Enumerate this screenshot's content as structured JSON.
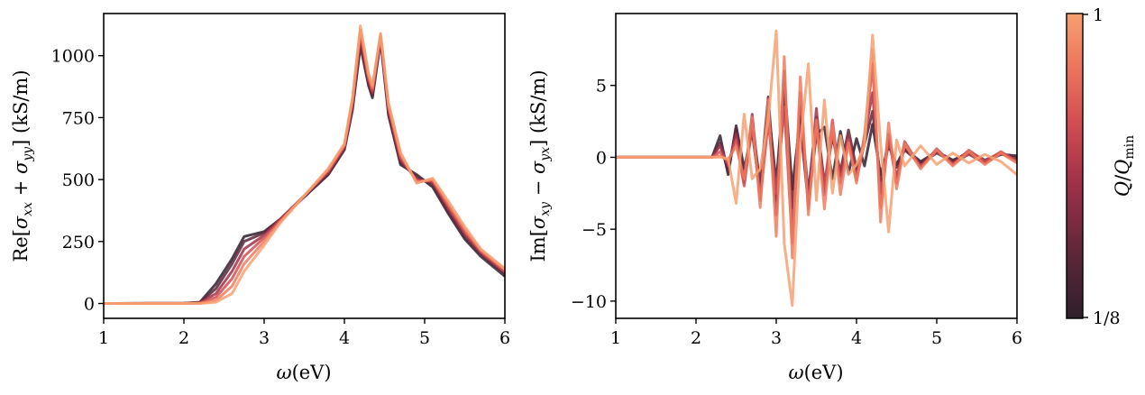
{
  "colormap": {
    "top_label": "1",
    "bottom_label": "1/8",
    "label_parts": [
      "Q",
      "/",
      "Q",
      "min"
    ],
    "colors": [
      "#2f1f2d",
      "#5b2638",
      "#a23149",
      "#d34f52",
      "#ef7b5f",
      "#f7a071"
    ]
  },
  "chart_data": [
    {
      "type": "line",
      "x_unit_label": "(eV)",
      "y_label_pre": "Re[",
      "y_label_post": "] (kS/m)",
      "xlim": [
        1,
        6
      ],
      "ylim": [
        -60,
        1170
      ],
      "xticks": [
        "1",
        "2",
        "3",
        "4",
        "5",
        "6"
      ],
      "yticks": [
        "0",
        "250",
        "500",
        "750",
        "1000"
      ],
      "x": [
        1.0,
        2.0,
        2.2,
        2.4,
        2.6,
        2.75,
        3.0,
        3.2,
        3.5,
        3.8,
        4.0,
        4.1,
        4.2,
        4.3,
        4.35,
        4.45,
        4.55,
        4.7,
        4.9,
        5.1,
        5.3,
        5.5,
        5.7,
        6.0
      ],
      "series": [
        {
          "values": [
            0,
            1,
            5,
            80,
            180,
            270,
            290,
            340,
            430,
            520,
            620,
            780,
            1040,
            880,
            830,
            1060,
            760,
            560,
            520,
            470,
            360,
            260,
            190,
            110
          ]
        },
        {
          "values": [
            0,
            1,
            4,
            60,
            160,
            250,
            285,
            340,
            430,
            525,
            625,
            790,
            1060,
            890,
            840,
            1070,
            770,
            570,
            510,
            480,
            370,
            270,
            200,
            120
          ]
        },
        {
          "values": [
            0,
            1,
            3,
            40,
            130,
            220,
            275,
            340,
            435,
            530,
            630,
            800,
            1075,
            900,
            850,
            1075,
            780,
            580,
            500,
            490,
            380,
            280,
            205,
            125
          ]
        },
        {
          "values": [
            0,
            0,
            2,
            25,
            100,
            190,
            265,
            335,
            435,
            535,
            635,
            810,
            1090,
            910,
            860,
            1080,
            790,
            590,
            495,
            495,
            390,
            290,
            210,
            130
          ]
        },
        {
          "values": [
            0,
            0,
            1,
            12,
            70,
            160,
            250,
            330,
            435,
            540,
            640,
            820,
            1105,
            920,
            870,
            1085,
            800,
            600,
            490,
            500,
            400,
            300,
            215,
            135
          ]
        },
        {
          "values": [
            0,
            0,
            0,
            5,
            40,
            130,
            235,
            325,
            435,
            545,
            645,
            830,
            1120,
            930,
            880,
            1090,
            810,
            610,
            485,
            505,
            410,
            310,
            220,
            140
          ]
        }
      ]
    },
    {
      "type": "line",
      "x_unit_label": "(eV)",
      "y_label_pre": "Im[",
      "y_label_post": "] (kS/m)",
      "xlim": [
        1,
        6
      ],
      "ylim": [
        -11.2,
        10
      ],
      "xticks": [
        "1",
        "2",
        "3",
        "4",
        "5",
        "6"
      ],
      "yticks": [
        "5",
        "0",
        "−5",
        "−10"
      ],
      "x": [
        1.0,
        2.2,
        2.3,
        2.4,
        2.5,
        2.6,
        2.7,
        2.8,
        2.9,
        3.0,
        3.1,
        3.2,
        3.3,
        3.4,
        3.5,
        3.6,
        3.7,
        3.8,
        3.9,
        4.0,
        4.1,
        4.2,
        4.3,
        4.4,
        4.5,
        4.6,
        4.8,
        5.0,
        5.2,
        5.4,
        5.6,
        5.8,
        6.0
      ],
      "series": [
        {
          "values": [
            0,
            0,
            1.5,
            -1.2,
            2.2,
            -0.8,
            1.8,
            -2.5,
            3.5,
            -1.8,
            5.2,
            -2.2,
            2.8,
            -3.1,
            1.6,
            2.1,
            -1.5,
            1.8,
            -1.1,
            1.3,
            -0.6,
            2.3,
            -1.2,
            0.8,
            -0.5,
            0.6,
            -0.3,
            0.4,
            -0.2,
            0.3,
            -0.3,
            0.2,
            0.1
          ]
        },
        {
          "values": [
            0,
            0,
            1.0,
            -1.0,
            2.0,
            -1.5,
            2.5,
            -2.0,
            4.2,
            -3.0,
            4.0,
            -3.5,
            3.5,
            -2.5,
            2.8,
            -1.8,
            1.4,
            -1.0,
            1.9,
            -0.8,
            0.9,
            3.2,
            -1.6,
            0.9,
            -0.7,
            0.5,
            -0.4,
            0.3,
            -0.3,
            0.4,
            -0.2,
            0.3,
            -0.1
          ]
        },
        {
          "values": [
            0,
            0,
            0.8,
            -0.6,
            1.6,
            -1.8,
            3.0,
            -2.8,
            3.0,
            -4.0,
            6.0,
            -5.0,
            2.2,
            -3.2,
            3.4,
            -2.6,
            1.7,
            -1.3,
            1.5,
            -1.2,
            1.4,
            4.5,
            -2.5,
            1.6,
            -1.4,
            0.8,
            -0.6,
            0.5,
            -0.4,
            0.2,
            -0.4,
            0.3,
            -0.2
          ]
        },
        {
          "values": [
            0,
            0,
            0.4,
            -0.4,
            1.2,
            -2.0,
            2.2,
            -3.0,
            2.5,
            -2.5,
            3.5,
            -6.0,
            4.5,
            -3.6,
            2.0,
            -2.2,
            2.6,
            -1.8,
            1.2,
            -1.6,
            1.0,
            6.5,
            -3.5,
            1.4,
            -1.8,
            1.1,
            -0.7,
            0.6,
            -0.5,
            0.5,
            -0.3,
            0.4,
            -0.3
          ]
        },
        {
          "values": [
            0,
            0,
            0.1,
            -0.2,
            0.8,
            -1.5,
            2.8,
            -3.5,
            4.0,
            -5.5,
            7.0,
            -7.0,
            5.6,
            -4.0,
            2.6,
            -3.6,
            2.2,
            -2.6,
            1.0,
            -1.8,
            1.6,
            7.5,
            -4.5,
            2.4,
            -2.2,
            0.9,
            -0.8,
            0.5,
            -0.6,
            0.4,
            -0.5,
            0.3,
            -0.4
          ]
        },
        {
          "values": [
            0,
            0,
            0,
            -0.1,
            -3.2,
            3.0,
            -1.5,
            -0.8,
            2.6,
            8.8,
            -6.0,
            -10.3,
            1.0,
            6.5,
            -3.0,
            4.0,
            -2.5,
            1.5,
            -1.2,
            -0.5,
            0.8,
            8.5,
            1.0,
            -5.2,
            1.2,
            -0.6,
            0.8,
            -0.5,
            0.3,
            -0.4,
            0.2,
            -0.3,
            -1.2
          ]
        }
      ]
    }
  ]
}
